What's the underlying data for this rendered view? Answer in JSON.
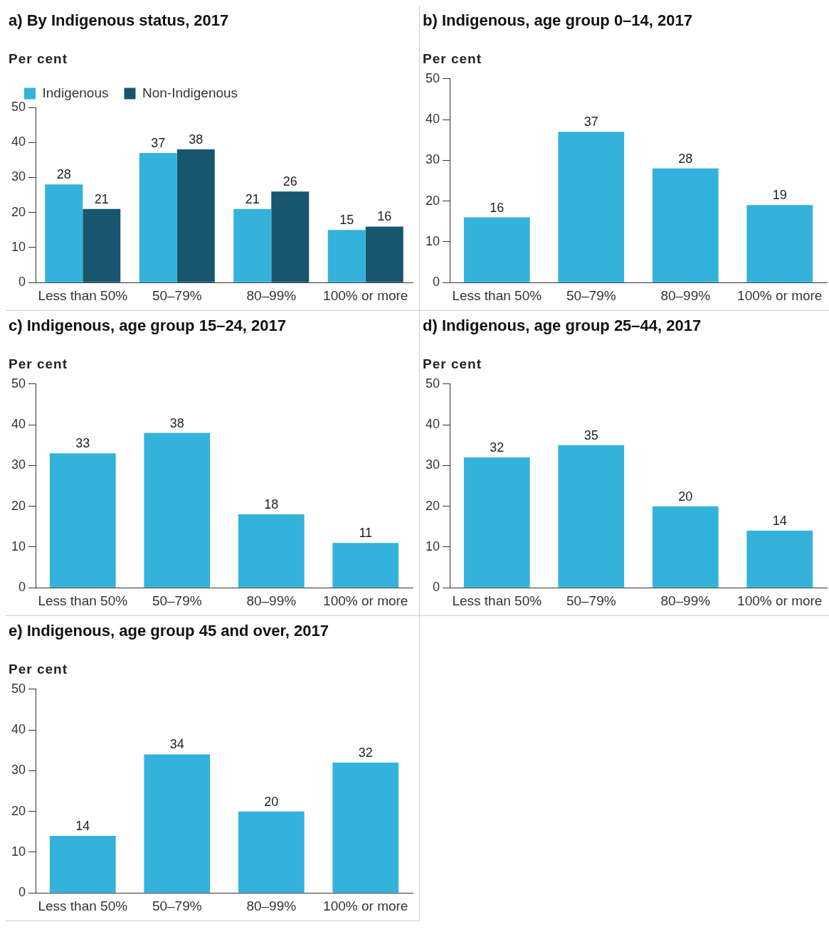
{
  "chart_data": [
    {
      "type": "bar",
      "title": "a) By Indigenous status, 2017",
      "ylabel": "Per cent",
      "categories": [
        "Less than 50%",
        "50–79%",
        "80–99%",
        "100% or more"
      ],
      "series": [
        {
          "name": "Indigenous",
          "color": "#33b2dc",
          "values": [
            28,
            37,
            21,
            15
          ]
        },
        {
          "name": "Non-Indigenous",
          "color": "#17566c",
          "values": [
            21,
            38,
            26,
            16
          ]
        }
      ],
      "ylim": [
        0,
        50
      ],
      "yticks": [
        0,
        10,
        20,
        30,
        40,
        50
      ],
      "data_labels": true,
      "legend": "top left",
      "grid": false
    },
    {
      "type": "bar",
      "title": "b) Indigenous, age group 0–14, 2017",
      "ylabel": "Per cent",
      "categories": [
        "Less than 50%",
        "50–79%",
        "80–99%",
        "100% or more"
      ],
      "series": [
        {
          "color": "#33b2dc",
          "values": [
            16,
            37,
            28,
            19
          ]
        }
      ],
      "ylim": [
        0,
        50
      ],
      "yticks": [
        0,
        10,
        20,
        30,
        40,
        50
      ],
      "data_labels": true,
      "legend": false,
      "grid": false
    },
    {
      "type": "bar",
      "title": "c) Indigenous, age group 15–24, 2017",
      "ylabel": "Per cent",
      "categories": [
        "Less than 50%",
        "50–79%",
        "80–99%",
        "100% or more"
      ],
      "series": [
        {
          "color": "#33b2dc",
          "values": [
            33,
            38,
            18,
            11
          ]
        }
      ],
      "ylim": [
        0,
        50
      ],
      "yticks": [
        0,
        10,
        20,
        30,
        40,
        50
      ],
      "data_labels": true,
      "legend": false,
      "grid": false
    },
    {
      "type": "bar",
      "title": "d) Indigenous, age group 25–44, 2017",
      "ylabel": "Per cent",
      "categories": [
        "Less than 50%",
        "50–79%",
        "80–99%",
        "100% or more"
      ],
      "series": [
        {
          "color": "#33b2dc",
          "values": [
            32,
            35,
            20,
            14
          ]
        }
      ],
      "ylim": [
        0,
        50
      ],
      "yticks": [
        0,
        10,
        20,
        30,
        40,
        50
      ],
      "data_labels": true,
      "legend": false,
      "grid": false
    },
    {
      "type": "bar",
      "title": "e) Indigenous, age group 45 and over, 2017",
      "ylabel": "Per cent",
      "categories": [
        "Less than 50%",
        "50–79%",
        "80–99%",
        "100% or more"
      ],
      "series": [
        {
          "color": "#33b2dc",
          "values": [
            14,
            34,
            20,
            32
          ]
        }
      ],
      "ylim": [
        0,
        50
      ],
      "yticks": [
        0,
        10,
        20,
        30,
        40,
        50
      ],
      "data_labels": true,
      "legend": false,
      "grid": false
    }
  ]
}
